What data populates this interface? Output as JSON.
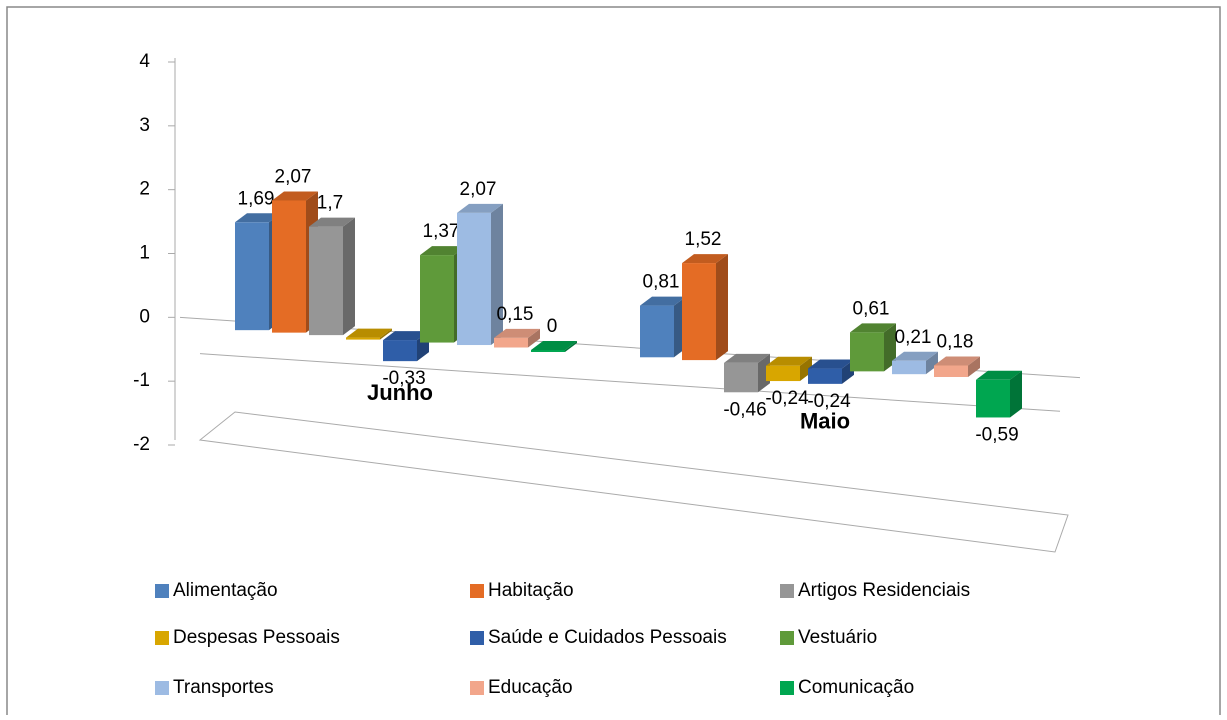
{
  "chart_data": {
    "type": "bar3d",
    "categories": [
      "Junho",
      "Maio"
    ],
    "ylim": [
      -2,
      4
    ],
    "yticks": [
      -2,
      -1,
      0,
      1,
      2,
      3,
      4
    ],
    "series": [
      {
        "name": "Alimentação",
        "color": "#4f81bd",
        "values": [
          1.69,
          0.81
        ],
        "value_labels": [
          "1,69",
          "0,81"
        ]
      },
      {
        "name": "Habitação",
        "color": "#e46c25",
        "values": [
          2.07,
          1.52
        ],
        "value_labels": [
          "2,07",
          "1,52"
        ]
      },
      {
        "name": "Artigos Residenciais",
        "color": "#969696",
        "values": [
          1.7,
          -0.46
        ],
        "value_labels": [
          "1,7",
          "-0,46"
        ]
      },
      {
        "name": "Despesas Pessoais",
        "color": "#d8a600",
        "values": [
          0,
          -0.24
        ],
        "value_labels": [
          null,
          "-0,24"
        ]
      },
      {
        "name": "Saúde e Cuidados Pessoais",
        "color": "#2f5ea8",
        "values": [
          -0.33,
          -0.24
        ],
        "value_labels": [
          "-0,33",
          "-0,24"
        ]
      },
      {
        "name": "Vestuário",
        "color": "#5f9a3a",
        "values": [
          1.37,
          0.61
        ],
        "value_labels": [
          "1,37",
          "0,61"
        ]
      },
      {
        "name": "Transportes",
        "color": "#9dbbe3",
        "values": [
          2.07,
          0.21
        ],
        "value_labels": [
          "2,07",
          "0,21"
        ]
      },
      {
        "name": "Educação",
        "color": "#f2a68b",
        "values": [
          0.15,
          0.18
        ],
        "value_labels": [
          "0,15",
          "0,18"
        ]
      },
      {
        "name": "Comunicação",
        "color": "#00a650",
        "values": [
          0,
          -0.59
        ],
        "value_labels": [
          "0",
          "-0,59"
        ]
      }
    ]
  }
}
